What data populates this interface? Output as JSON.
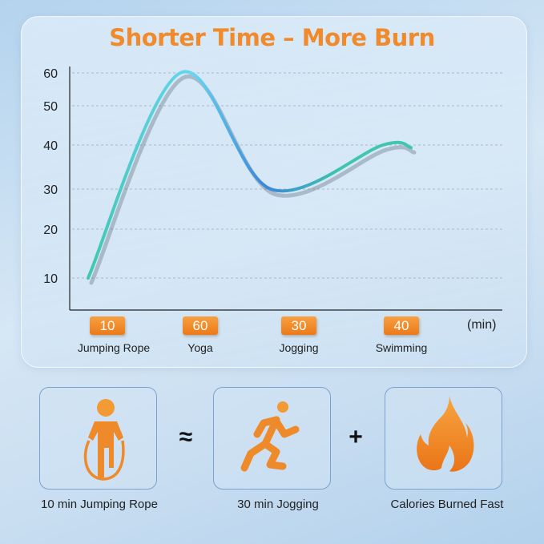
{
  "title": "Shorter Time – More Burn",
  "chart_data": {
    "type": "line",
    "title": "Shorter Time – More Burn",
    "categories": [
      "Jumping Rope",
      "Yoga",
      "Jogging",
      "Swimming"
    ],
    "values": [
      10,
      60,
      30,
      40
    ],
    "value_labels": [
      "10",
      "60",
      "30",
      "40"
    ],
    "x_unit": "(min)",
    "y_ticks": [
      10,
      20,
      30,
      40,
      50,
      60
    ],
    "y_tick_labels": [
      "10",
      "20",
      "30",
      "40",
      "50",
      "60"
    ],
    "ylim": [
      10,
      60
    ],
    "grid": true,
    "line_colors": [
      "#3ec7ae",
      "#66d6f2",
      "#3b86d8",
      "#3ec7ae"
    ]
  },
  "comparison": {
    "items": [
      {
        "label": "10 min Jumping Rope",
        "icon": "jump-rope-icon"
      },
      {
        "label": "30 min Jogging",
        "icon": "runner-icon"
      },
      {
        "label": "Calories Burned Fast",
        "icon": "flame-icon"
      }
    ],
    "approx_symbol": "≈",
    "plus_symbol": "+"
  },
  "colors": {
    "accent": "#f08a2a"
  }
}
